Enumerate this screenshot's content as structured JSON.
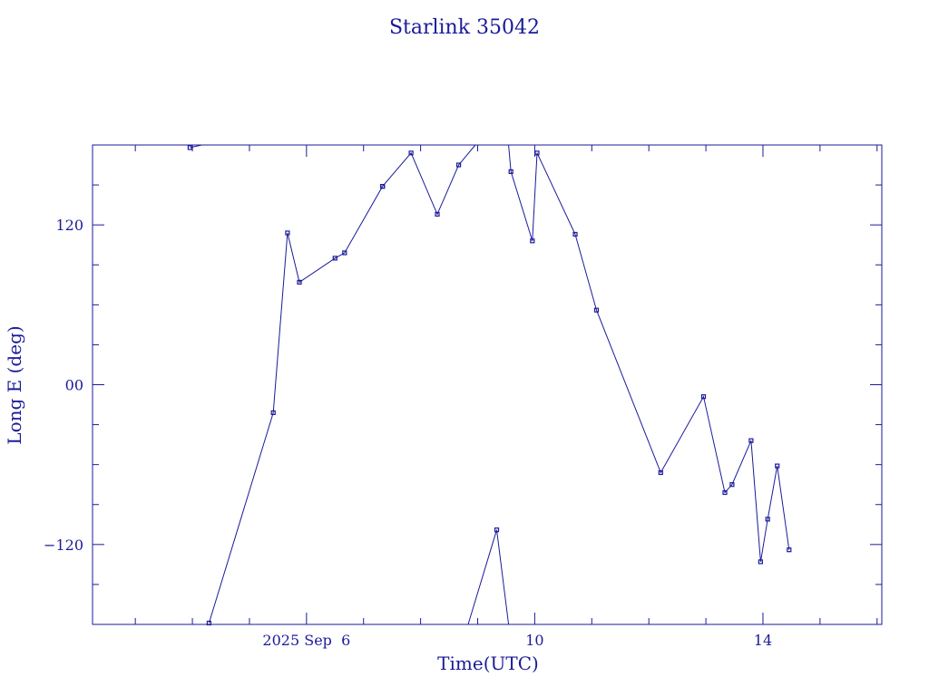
{
  "chart_data": {
    "type": "line",
    "title": "Starlink 35042",
    "xlabel": "Time(UTC)",
    "ylabel": "Long E (deg)",
    "xlim": [
      "2025-09-02T06:00",
      "2025-09-16T02:00"
    ],
    "ylim": [
      -180,
      180
    ],
    "x_tick_labels": [
      {
        "x": "2025-09-06T00:00",
        "label": "2025 Sep  6"
      },
      {
        "x": "2025-09-10T00:00",
        "label": "10"
      },
      {
        "x": "2025-09-14T00:00",
        "label": "14"
      }
    ],
    "y_tick_labels": [
      {
        "y": 120,
        "label": "120"
      },
      {
        "y": 0,
        "label": "00"
      },
      {
        "y": -120,
        "label": "−120"
      }
    ],
    "grid": false,
    "series": [
      {
        "segments": [
          [
            {
              "x": "2025-09-03T23:00",
              "y": 178
            },
            {
              "x": "2025-09-04T04:00",
              "y": 180
            }
          ],
          [
            {
              "x": "2025-09-04T07:00",
              "y": -179
            },
            {
              "x": "2025-09-05T10:00",
              "y": -21
            },
            {
              "x": "2025-09-05T16:00",
              "y": 114
            },
            {
              "x": "2025-09-05T21:00",
              "y": 77
            },
            {
              "x": "2025-09-06T12:00",
              "y": 95
            },
            {
              "x": "2025-09-06T16:00",
              "y": 99
            },
            {
              "x": "2025-09-07T08:00",
              "y": 149
            },
            {
              "x": "2025-09-07T08:00",
              "y": 149
            },
            {
              "x": "2025-09-07T20:00",
              "y": 174
            },
            {
              "x": "2025-09-08T07:00",
              "y": 128
            },
            {
              "x": "2025-09-08T16:00",
              "y": 165
            },
            {
              "x": "2025-09-08T23:00",
              "y": 180
            }
          ],
          [
            {
              "x": "2025-09-08T20:00",
              "y": -180
            },
            {
              "x": "2025-09-09T08:00",
              "y": -109
            },
            {
              "x": "2025-09-09T13:00",
              "y": -180
            }
          ],
          [
            {
              "x": "2025-09-09T13:00",
              "y": 180
            },
            {
              "x": "2025-09-09T14:00",
              "y": 160
            },
            {
              "x": "2025-09-09T23:00",
              "y": 108
            },
            {
              "x": "2025-09-10T01:00",
              "y": 174
            },
            {
              "x": "2025-09-10T17:00",
              "y": 113
            },
            {
              "x": "2025-09-11T02:00",
              "y": 56
            },
            {
              "x": "2025-09-12T05:00",
              "y": -66
            },
            {
              "x": "2025-09-12T23:00",
              "y": -9
            },
            {
              "x": "2025-09-13T08:00",
              "y": -81
            },
            {
              "x": "2025-09-13T11:00",
              "y": -75
            },
            {
              "x": "2025-09-13T19:00",
              "y": -42
            },
            {
              "x": "2025-09-13T23:00",
              "y": -133
            },
            {
              "x": "2025-09-14T02:00",
              "y": -101
            },
            {
              "x": "2025-09-14T06:00",
              "y": -61
            },
            {
              "x": "2025-09-14T11:00",
              "y": -124
            }
          ]
        ]
      }
    ]
  }
}
